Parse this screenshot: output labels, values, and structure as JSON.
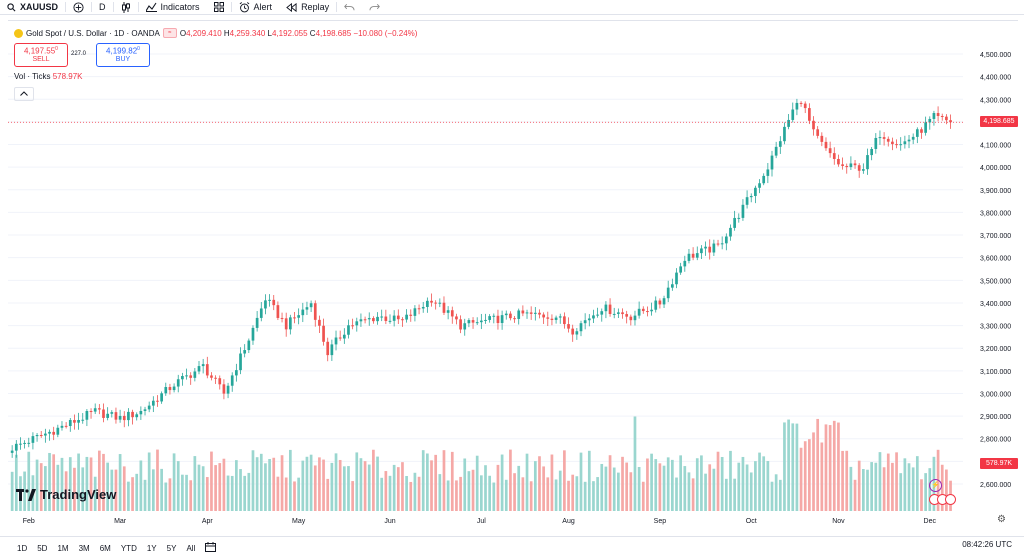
{
  "toolbar": {
    "symbol": "XAUUSD",
    "interval": "D",
    "indicators": "Indicators",
    "alert": "Alert",
    "replay": "Replay"
  },
  "legend": {
    "title": "Gold Spot / U.S. Dollar · 1D · OANDA",
    "o_label": "O",
    "o": "4,209.410",
    "h_label": "H",
    "h": "4,259.340",
    "l_label": "L",
    "l": "4,192.055",
    "c_label": "C",
    "c": "4,198.685",
    "change": "−10.080 (−0.24%)"
  },
  "trade": {
    "sell_price": "4,197.55",
    "sell_sup": "0",
    "sell_label": "SELL",
    "spread": "227.0",
    "buy_price": "4,199.82",
    "buy_sup": "0",
    "buy_label": "BUY"
  },
  "volume": {
    "label": "Vol · Ticks",
    "value": "578.97K"
  },
  "logo_text": "TradingView",
  "price_tag": "4,198.685",
  "vol_tag": "578.97K",
  "ranges": [
    "1D",
    "5D",
    "1M",
    "3M",
    "6M",
    "YTD",
    "1Y",
    "5Y",
    "All"
  ],
  "clock": "08:42:26 UTC",
  "colors": {
    "up": "#26a69a",
    "down": "#ef5350",
    "vol_up": "#9ad6cf",
    "vol_down": "#f5a8a6",
    "grid": "#f0f3fa"
  },
  "chart_data": {
    "type": "candlestick",
    "title": "Gold Spot / U.S. Dollar · 1D · OANDA",
    "y_axis_ticks": [
      "4,500.000",
      "4,400.000",
      "4,300.000",
      "4,200.000",
      "4,100.000",
      "4,000.000",
      "3,900.000",
      "3,800.000",
      "3,700.000",
      "3,600.000",
      "3,500.000",
      "3,400.000",
      "3,300.000",
      "3,200.000",
      "3,100.000",
      "3,000.000",
      "2,900.000",
      "2,800.000",
      "2,700.000",
      "2,600.000"
    ],
    "ylim": [
      2560,
      4540
    ],
    "x_axis_labels": [
      "Feb",
      "Mar",
      "Apr",
      "May",
      "Jun",
      "Jul",
      "Aug",
      "Sep",
      "Oct",
      "Nov",
      "Dec"
    ],
    "close_anchors": [
      [
        0,
        2760
      ],
      [
        13,
        2860
      ],
      [
        20,
        2920
      ],
      [
        26,
        2890
      ],
      [
        31,
        2920
      ],
      [
        39,
        3040
      ],
      [
        46,
        3120
      ],
      [
        51,
        3000
      ],
      [
        57,
        3240
      ],
      [
        61,
        3420
      ],
      [
        66,
        3300
      ],
      [
        72,
        3400
      ],
      [
        76,
        3180
      ],
      [
        81,
        3300
      ],
      [
        88,
        3340
      ],
      [
        94,
        3320
      ],
      [
        101,
        3420
      ],
      [
        108,
        3300
      ],
      [
        114,
        3320
      ],
      [
        123,
        3350
      ],
      [
        131,
        3340
      ],
      [
        135,
        3280
      ],
      [
        142,
        3380
      ],
      [
        149,
        3340
      ],
      [
        156,
        3400
      ],
      [
        162,
        3600
      ],
      [
        170,
        3650
      ],
      [
        176,
        3820
      ],
      [
        182,
        4000
      ],
      [
        188,
        4250
      ],
      [
        190,
        4300
      ],
      [
        193,
        4150
      ],
      [
        197,
        4050
      ],
      [
        200,
        4000
      ],
      [
        205,
        4000
      ],
      [
        209,
        4150
      ],
      [
        214,
        4100
      ],
      [
        218,
        4150
      ],
      [
        222,
        4220
      ],
      [
        226,
        4199
      ]
    ],
    "volume_ylim": [
      0,
      500000
    ],
    "current_close": 4198.685,
    "current_volume": 578970
  }
}
